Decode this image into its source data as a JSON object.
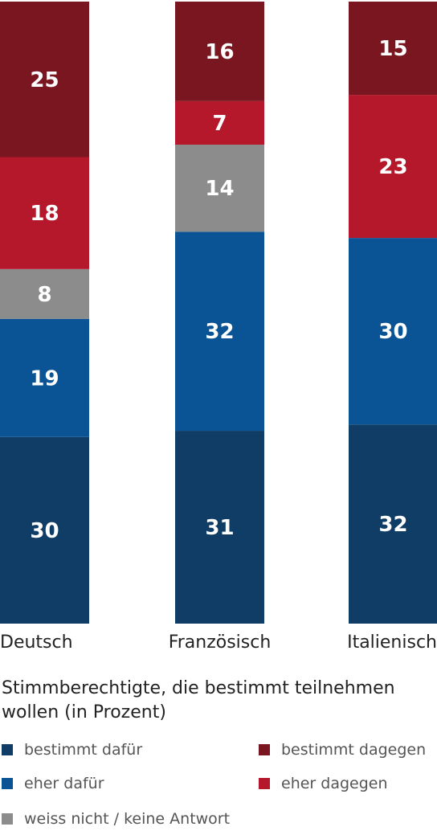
{
  "chart_data": {
    "type": "bar",
    "stacked": true,
    "categories": [
      "Deutsch",
      "Französisch",
      "Italienisch"
    ],
    "series": [
      {
        "name": "bestimmt dafür",
        "color": "#0f3d66",
        "values": [
          30,
          31,
          32
        ]
      },
      {
        "name": "eher dafür",
        "color": "#0a5496",
        "values": [
          19,
          32,
          30
        ]
      },
      {
        "name": "weiss nicht / keine Antwort",
        "color": "#8c8c8c",
        "values": [
          8,
          14,
          0
        ]
      },
      {
        "name": "eher dagegen",
        "color": "#b5172b",
        "values": [
          18,
          7,
          23
        ]
      },
      {
        "name": "bestimmt dagegen",
        "color": "#7a1620",
        "values": [
          25,
          16,
          15
        ]
      }
    ],
    "title": "Stimmberechtigte, die bestimmt teilnehmen wollen (in Prozent)",
    "legend_position": "bottom",
    "grid": false
  }
}
